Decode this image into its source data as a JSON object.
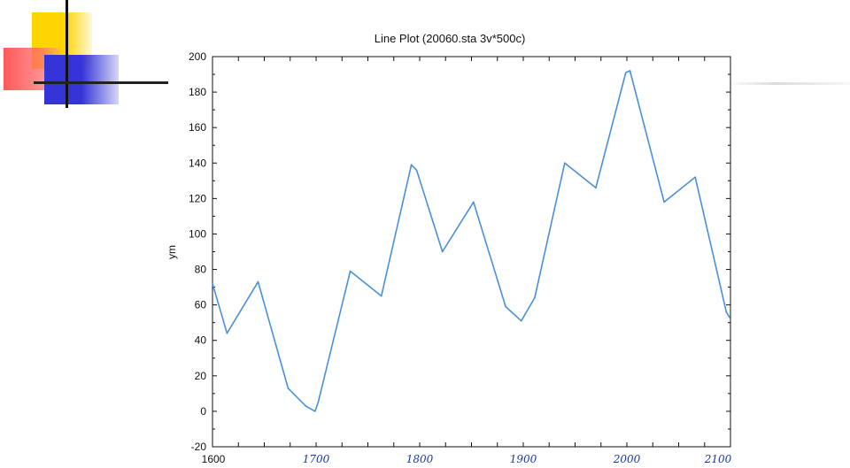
{
  "chart_data": {
    "type": "line",
    "title": "Line Plot (20060.sta 3v*500c)",
    "xlabel": "",
    "ylabel": "ym",
    "xlim": [
      1600,
      2100
    ],
    "ylim": [
      -20,
      200
    ],
    "yticks": [
      -20,
      0,
      20,
      40,
      60,
      80,
      100,
      120,
      140,
      160,
      180,
      200
    ],
    "xticks": [
      "1600",
      "1700",
      "1800",
      "1900",
      "2000",
      "2100"
    ],
    "grid": false,
    "series": [
      {
        "color": "#4a90d9",
        "x": [
          1600,
          1614,
          1644,
          1673,
          1690,
          1699,
          1702,
          1733,
          1763,
          1792,
          1797,
          1822,
          1852,
          1883,
          1898,
          1911,
          1940,
          1970,
          1999,
          2003,
          2036,
          2066,
          2096,
          2099
        ],
        "y": [
          72,
          44,
          73,
          13,
          3,
          0,
          5,
          79,
          65,
          139,
          136,
          90,
          118,
          59,
          51,
          64,
          140,
          126,
          191,
          192,
          118,
          132,
          56,
          53
        ]
      }
    ]
  }
}
